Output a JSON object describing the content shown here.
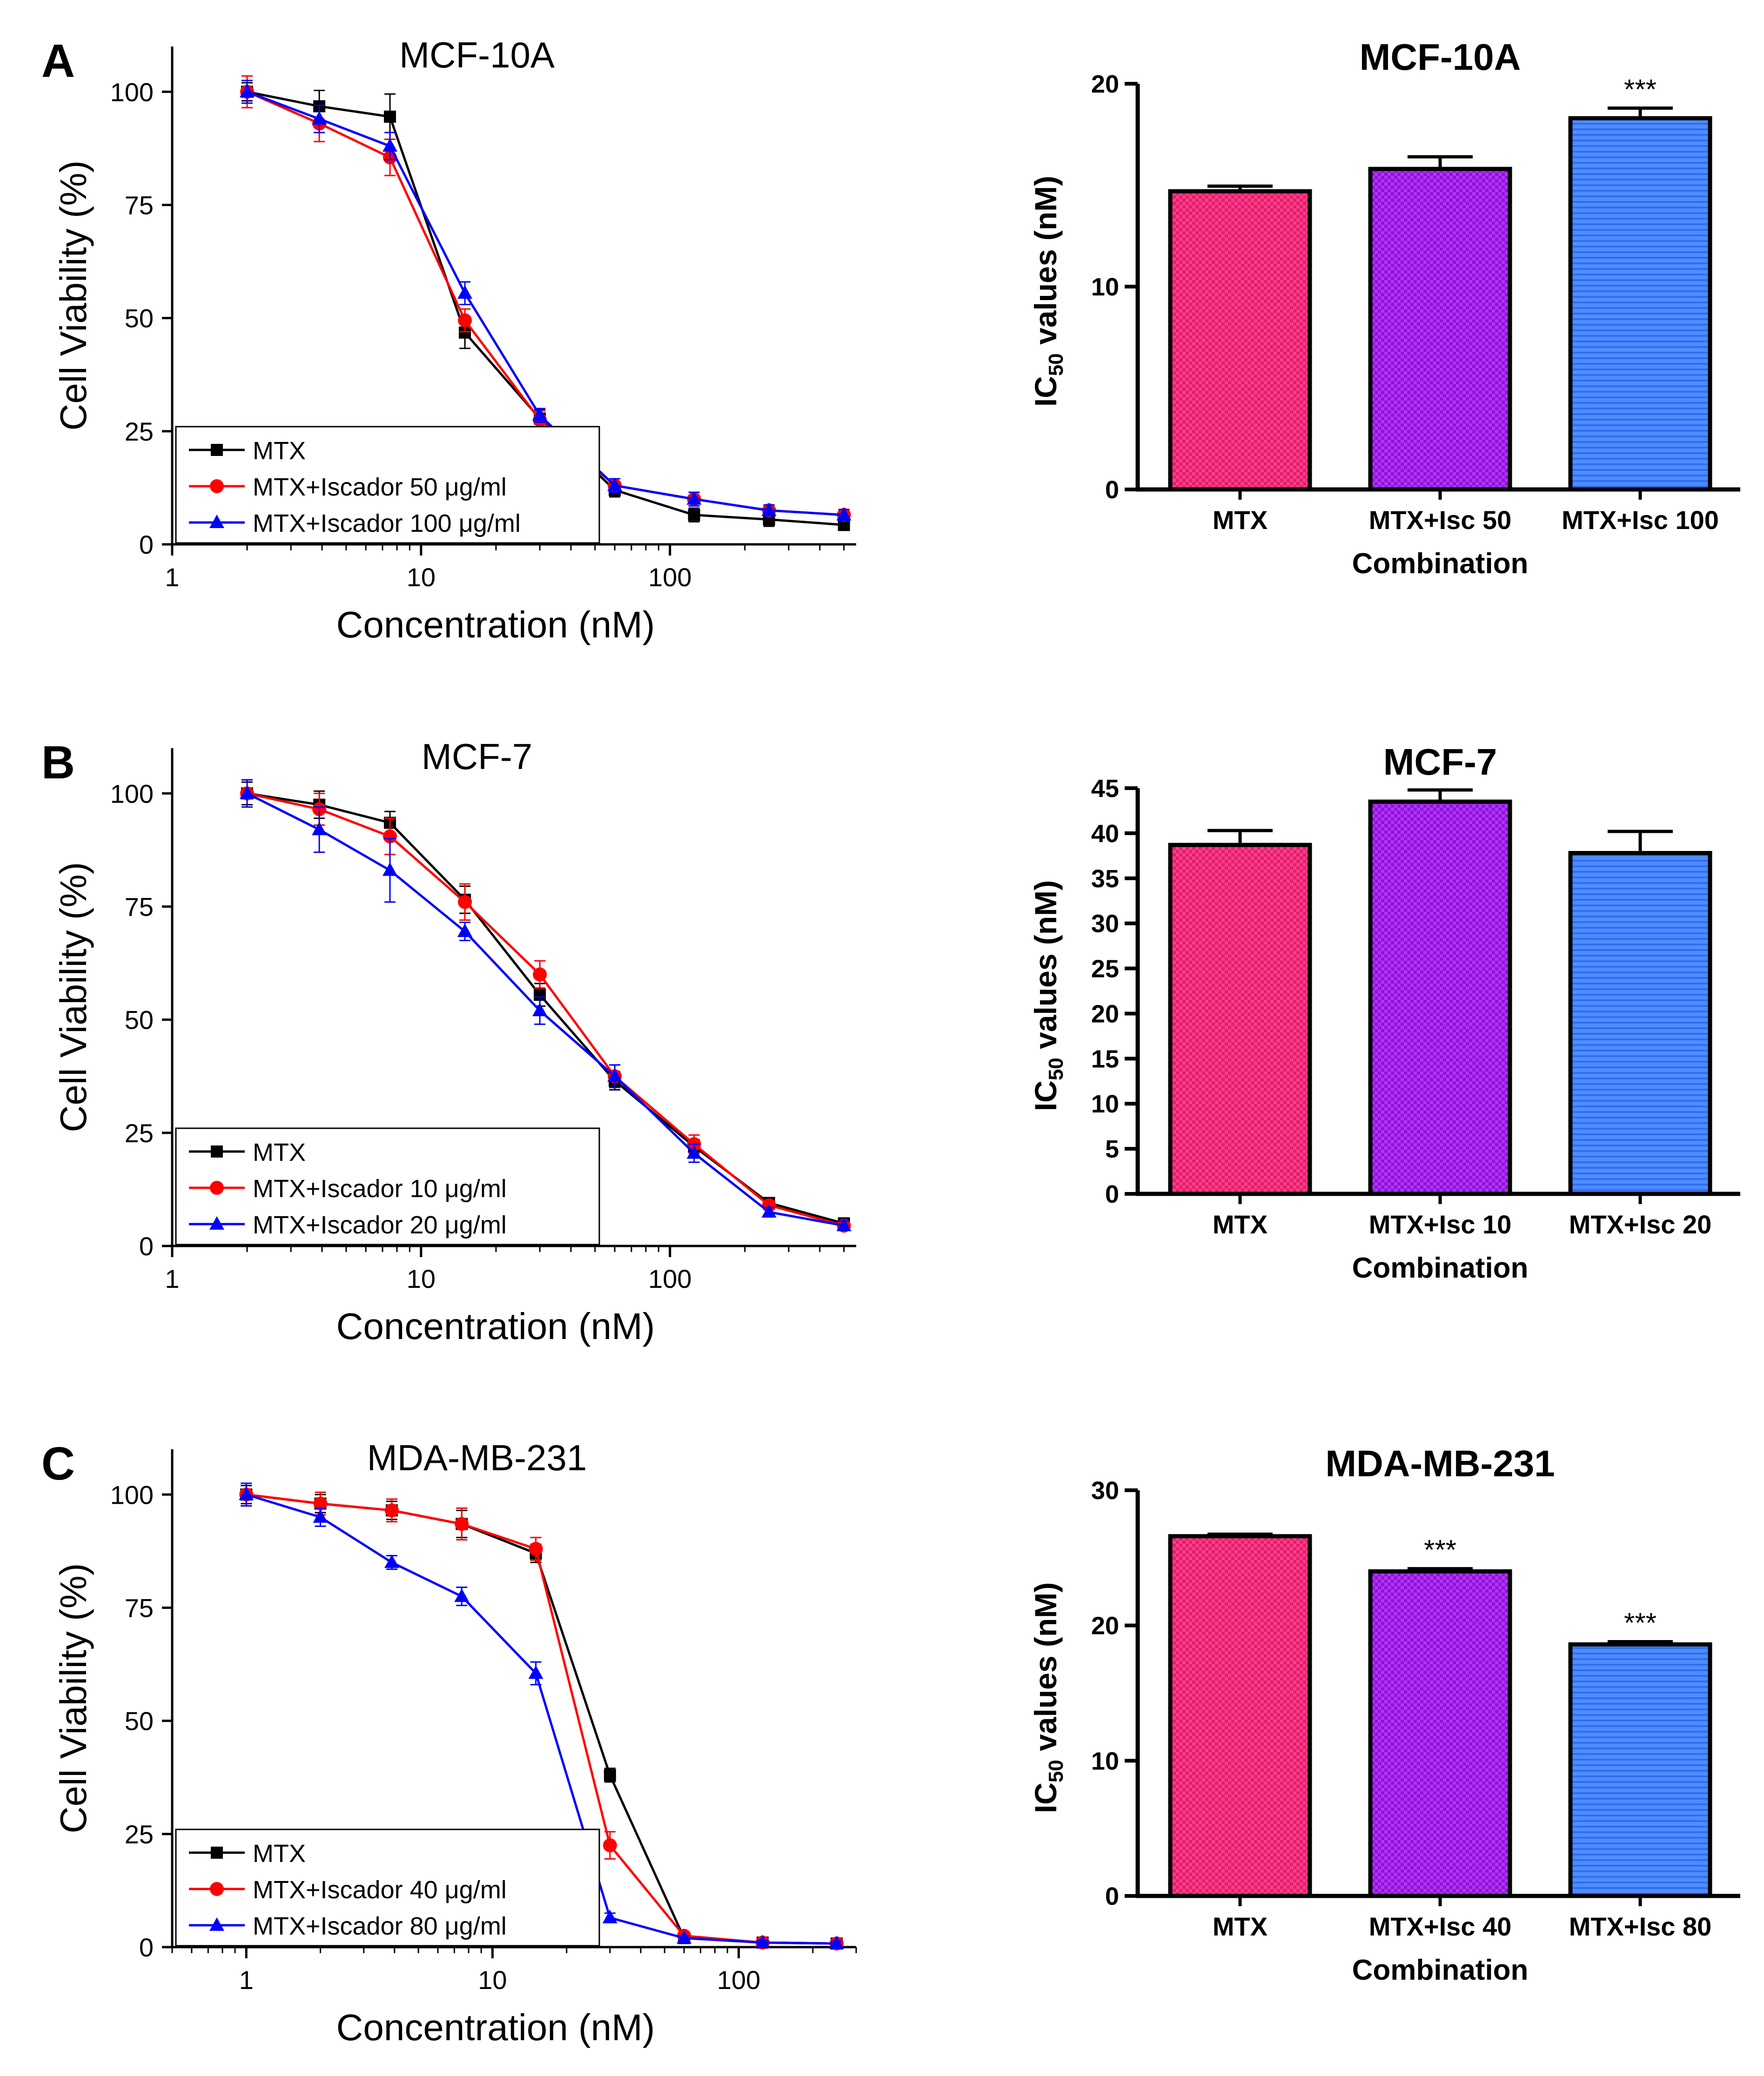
{
  "colors": {
    "mtx_line": "#000000",
    "low_dose_line": "#ff0000",
    "high_dose_line": "#0000ff",
    "bar_mtx": "#ff3d8b",
    "bar_mtx_check": "#e0206a",
    "bar_low": "#b035f5",
    "bar_low_check": "#8e14d6",
    "bar_high": "#4f8dff",
    "bar_high_stripe": "#2f6ef0"
  },
  "chart_data": [
    {
      "type": "line",
      "panel_letter": "A",
      "title": "MCF-10A",
      "xlabel": "Concentration (nM)",
      "ylabel": "Cell Viability (%)",
      "xscale": "log",
      "xlim": [
        1,
        560
      ],
      "ylim": [
        0,
        110
      ],
      "xticks": [
        {
          "value": 1,
          "label": "1"
        },
        {
          "value": 10,
          "label": "10"
        },
        {
          "value": 100,
          "label": "100"
        }
      ],
      "yticks": [
        {
          "value": 0,
          "label": "0"
        },
        {
          "value": 25,
          "label": "25"
        },
        {
          "value": 50,
          "label": "50"
        },
        {
          "value": 75,
          "label": "75"
        },
        {
          "value": 100,
          "label": "100"
        }
      ],
      "legend_position": "bottom-left",
      "x": [
        2,
        3.9,
        7.5,
        15,
        30,
        60,
        125,
        250,
        500
      ],
      "series": [
        {
          "name": "MTX",
          "marker": "square",
          "color_key": "mtx_line",
          "values": [
            100,
            96.8,
            94.5,
            46.8,
            27.8,
            12,
            6.5,
            5.5,
            4.3
          ],
          "errors": [
            2,
            3.5,
            5,
            3.5,
            2,
            1.5,
            1.5,
            1.5,
            1.2
          ]
        },
        {
          "name": "MTX+Iscador 50 μg/ml",
          "marker": "circle",
          "color_key": "low_dose_line",
          "values": [
            100,
            93,
            85.5,
            49.5,
            27.5,
            13,
            10,
            7.5,
            6.5
          ],
          "errors": [
            3.5,
            4,
            4,
            2.5,
            2,
            1.5,
            1.5,
            1.2,
            1.2
          ]
        },
        {
          "name": "MTX+Iscador 100 μg/ml",
          "marker": "triangle",
          "color_key": "high_dose_line",
          "values": [
            100,
            94,
            88,
            55.5,
            28.5,
            13,
            10,
            7.5,
            6.5
          ],
          "errors": [
            2.5,
            3,
            3,
            2.5,
            1.5,
            1.5,
            1.5,
            1.2,
            1.2
          ]
        }
      ]
    },
    {
      "type": "bar",
      "title": "MCF-10A",
      "xlabel": "Combination",
      "ylabel_main": "IC",
      "ylabel_sub": "50",
      "ylabel_tail": " values (nM)",
      "ylim": [
        0,
        20
      ],
      "yticks": [
        {
          "value": 0,
          "label": "0"
        },
        {
          "value": 10,
          "label": "10"
        },
        {
          "value": 20,
          "label": "20"
        }
      ],
      "categories": [
        "MTX",
        "MTX+Isc 50",
        "MTX+Isc 100"
      ],
      "values": [
        14.7,
        15.8,
        18.3
      ],
      "errors": [
        0.25,
        0.6,
        0.5
      ],
      "significance": [
        "",
        "",
        "***"
      ]
    },
    {
      "type": "line",
      "panel_letter": "B",
      "title": "MCF-7",
      "xlabel": "Concentration (nM)",
      "ylabel": "Cell Viability (%)",
      "xscale": "log",
      "xlim": [
        1,
        560
      ],
      "ylim": [
        0,
        110
      ],
      "xticks": [
        {
          "value": 1,
          "label": "1"
        },
        {
          "value": 10,
          "label": "10"
        },
        {
          "value": 100,
          "label": "100"
        }
      ],
      "yticks": [
        {
          "value": 0,
          "label": "0"
        },
        {
          "value": 25,
          "label": "25"
        },
        {
          "value": 50,
          "label": "50"
        },
        {
          "value": 75,
          "label": "75"
        },
        {
          "value": 100,
          "label": "100"
        }
      ],
      "legend_position": "bottom-left",
      "x": [
        2,
        3.9,
        7.5,
        15,
        30,
        60,
        125,
        250,
        500
      ],
      "series": [
        {
          "name": "MTX",
          "marker": "square",
          "color_key": "mtx_line",
          "values": [
            100,
            97.5,
            93.5,
            76.5,
            55.5,
            36.5,
            22,
            9.5,
            5
          ],
          "errors": [
            2.5,
            3,
            2.5,
            3,
            2.5,
            2,
            1.5,
            1,
            1
          ]
        },
        {
          "name": "MTX+Iscador 10 μg/ml",
          "marker": "circle",
          "color_key": "low_dose_line",
          "values": [
            100,
            96.5,
            90.5,
            76,
            60,
            37.5,
            22.5,
            9,
            4.5
          ],
          "errors": [
            3,
            3.5,
            4,
            4,
            3,
            2.5,
            2,
            1,
            1
          ]
        },
        {
          "name": "MTX+Iscador 20 μg/ml",
          "marker": "triangle",
          "color_key": "high_dose_line",
          "values": [
            100,
            92,
            83,
            69.5,
            52,
            37.5,
            20.5,
            7.5,
            4.5
          ],
          "errors": [
            3,
            5,
            7,
            2,
            3,
            2.5,
            2,
            1,
            1
          ]
        }
      ]
    },
    {
      "type": "bar",
      "title": "MCF-7",
      "xlabel": "Combination",
      "ylabel_main": "IC",
      "ylabel_sub": "50",
      "ylabel_tail": " values (nM)",
      "ylim": [
        0,
        45
      ],
      "yticks": [
        {
          "value": 0,
          "label": "0"
        },
        {
          "value": 5,
          "label": "5"
        },
        {
          "value": 10,
          "label": "10"
        },
        {
          "value": 15,
          "label": "15"
        },
        {
          "value": 20,
          "label": "20"
        },
        {
          "value": 25,
          "label": "25"
        },
        {
          "value": 30,
          "label": "30"
        },
        {
          "value": 35,
          "label": "35"
        },
        {
          "value": 40,
          "label": "40"
        },
        {
          "value": 45,
          "label": "45"
        }
      ],
      "categories": [
        "MTX",
        "MTX+Isc 10",
        "MTX+Isc 20"
      ],
      "values": [
        38.7,
        43.5,
        37.8
      ],
      "errors": [
        1.6,
        1.3,
        2.4
      ],
      "significance": [
        "",
        "",
        ""
      ]
    },
    {
      "type": "line",
      "panel_letter": "C",
      "title": "MDA-MB-231",
      "xlabel": "Concentration (nM)",
      "ylabel": "Cell Viability (%)",
      "xscale": "log",
      "xlim": [
        0.5,
        300
      ],
      "ylim": [
        0,
        110
      ],
      "xticks": [
        {
          "value": 1,
          "label": "1"
        },
        {
          "value": 10,
          "label": "10"
        },
        {
          "value": 100,
          "label": "100"
        }
      ],
      "yticks": [
        {
          "value": 0,
          "label": "0"
        },
        {
          "value": 25,
          "label": "25"
        },
        {
          "value": 50,
          "label": "50"
        },
        {
          "value": 75,
          "label": "75"
        },
        {
          "value": 100,
          "label": "100"
        }
      ],
      "legend_position": "bottom-left",
      "x": [
        1,
        2,
        3.9,
        7.5,
        15,
        30,
        60,
        125,
        250
      ],
      "series": [
        {
          "name": "MTX",
          "marker": "square",
          "color_key": "mtx_line",
          "values": [
            100,
            98,
            96.5,
            93.5,
            87,
            38,
            2,
            1,
            0.8
          ],
          "errors": [
            2,
            2,
            2,
            3,
            2,
            1.5,
            0.5,
            0.5,
            0.5
          ]
        },
        {
          "name": "MTX+Iscador 40 μg/ml",
          "marker": "circle",
          "color_key": "low_dose_line",
          "values": [
            100,
            98,
            96.5,
            93.5,
            88,
            22.5,
            2.5,
            1,
            0.8
          ],
          "errors": [
            2.5,
            2.5,
            2.5,
            3.5,
            2.5,
            3,
            0.5,
            0.5,
            0.5
          ]
        },
        {
          "name": "MTX+Iscador 80 μg/ml",
          "marker": "triangle",
          "color_key": "high_dose_line",
          "values": [
            100,
            95,
            85,
            77.5,
            60.5,
            6.5,
            2,
            1,
            0.8
          ],
          "errors": [
            2.5,
            2,
            1.5,
            2,
            2.5,
            1,
            0.5,
            0.5,
            0.5
          ]
        }
      ]
    },
    {
      "type": "bar",
      "title": "MDA-MB-231",
      "xlabel": "Combination",
      "ylabel_main": "IC",
      "ylabel_sub": "50",
      "ylabel_tail": " values (nM)",
      "ylim": [
        0,
        30
      ],
      "yticks": [
        {
          "value": 0,
          "label": "0"
        },
        {
          "value": 10,
          "label": "10"
        },
        {
          "value": 20,
          "label": "20"
        },
        {
          "value": 30,
          "label": "30"
        }
      ],
      "categories": [
        "MTX",
        "MTX+Isc 40",
        "MTX+Isc 80"
      ],
      "values": [
        26.6,
        24,
        18.6
      ],
      "errors": [
        0.15,
        0.2,
        0.2
      ],
      "significance": [
        "",
        "***",
        "***"
      ]
    }
  ]
}
